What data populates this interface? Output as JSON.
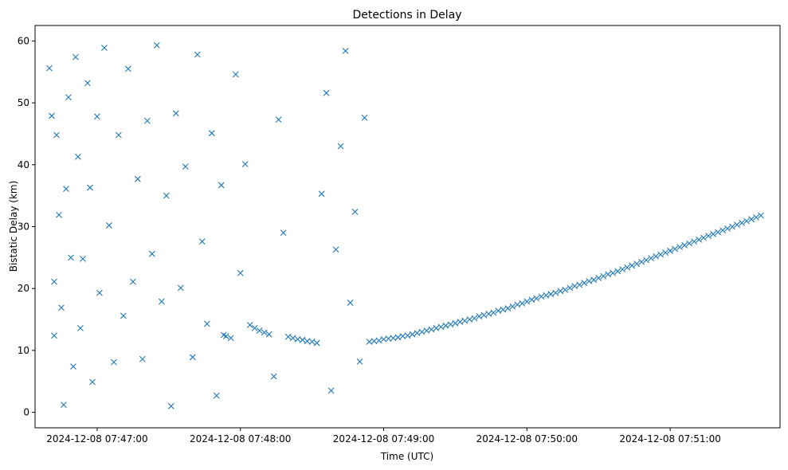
{
  "chart_data": {
    "type": "scatter",
    "title": "Detections in Delay",
    "xlabel": "Time (UTC)",
    "ylabel": "Bistatic Delay (km)",
    "x_type": "time",
    "xlim": [
      "2024-12-08 07:46:34",
      "2024-12-08 07:51:46"
    ],
    "ylim": [
      -2.5,
      62.5
    ],
    "x_ticks": [
      "2024-12-08 07:47:00",
      "2024-12-08 07:48:00",
      "2024-12-08 07:49:00",
      "2024-12-08 07:50:00",
      "2024-12-08 07:51:00"
    ],
    "y_ticks": [
      0,
      10,
      20,
      30,
      40,
      50,
      60
    ],
    "marker": "x",
    "color": "#1f77b4",
    "grid": false,
    "legend": "none",
    "series": [
      {
        "points": [
          [
            "2024-12-08 07:46:40",
            55.6
          ],
          [
            "2024-12-08 07:46:41",
            47.9
          ],
          [
            "2024-12-08 07:46:42",
            21.1
          ],
          [
            "2024-12-08 07:46:42",
            12.4
          ],
          [
            "2024-12-08 07:46:43",
            44.8
          ],
          [
            "2024-12-08 07:46:44",
            31.9
          ],
          [
            "2024-12-08 07:46:45",
            16.9
          ],
          [
            "2024-12-08 07:46:46",
            1.2
          ],
          [
            "2024-12-08 07:46:47",
            36.1
          ],
          [
            "2024-12-08 07:46:48",
            50.9
          ],
          [
            "2024-12-08 07:46:49",
            25.0
          ],
          [
            "2024-12-08 07:46:50",
            7.4
          ],
          [
            "2024-12-08 07:46:51",
            57.4
          ],
          [
            "2024-12-08 07:46:52",
            41.3
          ],
          [
            "2024-12-08 07:46:53",
            13.6
          ],
          [
            "2024-12-08 07:46:54",
            24.8
          ],
          [
            "2024-12-08 07:46:56",
            53.2
          ],
          [
            "2024-12-08 07:46:57",
            36.3
          ],
          [
            "2024-12-08 07:46:58",
            4.9
          ],
          [
            "2024-12-08 07:47:00",
            47.8
          ],
          [
            "2024-12-08 07:47:01",
            19.3
          ],
          [
            "2024-12-08 07:47:03",
            58.9
          ],
          [
            "2024-12-08 07:47:05",
            30.2
          ],
          [
            "2024-12-08 07:47:07",
            8.1
          ],
          [
            "2024-12-08 07:47:09",
            44.8
          ],
          [
            "2024-12-08 07:47:11",
            15.6
          ],
          [
            "2024-12-08 07:47:13",
            55.5
          ],
          [
            "2024-12-08 07:47:15",
            21.1
          ],
          [
            "2024-12-08 07:47:17",
            37.7
          ],
          [
            "2024-12-08 07:47:19",
            8.6
          ],
          [
            "2024-12-08 07:47:21",
            47.1
          ],
          [
            "2024-12-08 07:47:23",
            25.6
          ],
          [
            "2024-12-08 07:47:25",
            59.3
          ],
          [
            "2024-12-08 07:47:27",
            17.9
          ],
          [
            "2024-12-08 07:47:29",
            35.0
          ],
          [
            "2024-12-08 07:47:31",
            1.0
          ],
          [
            "2024-12-08 07:47:33",
            48.3
          ],
          [
            "2024-12-08 07:47:35",
            20.1
          ],
          [
            "2024-12-08 07:47:37",
            39.7
          ],
          [
            "2024-12-08 07:47:40",
            8.9
          ],
          [
            "2024-12-08 07:47:42",
            57.8
          ],
          [
            "2024-12-08 07:47:44",
            27.6
          ],
          [
            "2024-12-08 07:47:46",
            14.3
          ],
          [
            "2024-12-08 07:47:48",
            45.1
          ],
          [
            "2024-12-08 07:47:50",
            2.7
          ],
          [
            "2024-12-08 07:47:52",
            36.7
          ],
          [
            "2024-12-08 07:47:53",
            12.5
          ],
          [
            "2024-12-08 07:47:54",
            12.3
          ],
          [
            "2024-12-08 07:47:56",
            12.0
          ],
          [
            "2024-12-08 07:47:58",
            54.6
          ],
          [
            "2024-12-08 07:48:00",
            22.5
          ],
          [
            "2024-12-08 07:48:02",
            40.1
          ],
          [
            "2024-12-08 07:48:04",
            14.1
          ],
          [
            "2024-12-08 07:48:06",
            13.6
          ],
          [
            "2024-12-08 07:48:08",
            13.2
          ],
          [
            "2024-12-08 07:48:10",
            12.9
          ],
          [
            "2024-12-08 07:48:12",
            12.6
          ],
          [
            "2024-12-08 07:48:14",
            5.8
          ],
          [
            "2024-12-08 07:48:16",
            47.3
          ],
          [
            "2024-12-08 07:48:18",
            29.0
          ],
          [
            "2024-12-08 07:48:20",
            12.2
          ],
          [
            "2024-12-08 07:48:22",
            12.0
          ],
          [
            "2024-12-08 07:48:24",
            11.8
          ],
          [
            "2024-12-08 07:48:26",
            11.7
          ],
          [
            "2024-12-08 07:48:28",
            11.5
          ],
          [
            "2024-12-08 07:48:30",
            11.4
          ],
          [
            "2024-12-08 07:48:32",
            11.2
          ],
          [
            "2024-12-08 07:48:34",
            35.3
          ],
          [
            "2024-12-08 07:48:36",
            51.6
          ],
          [
            "2024-12-08 07:48:38",
            3.5
          ],
          [
            "2024-12-08 07:48:40",
            26.3
          ],
          [
            "2024-12-08 07:48:42",
            43.0
          ],
          [
            "2024-12-08 07:48:44",
            58.4
          ],
          [
            "2024-12-08 07:48:46",
            17.7
          ],
          [
            "2024-12-08 07:48:48",
            32.4
          ],
          [
            "2024-12-08 07:48:50",
            8.2
          ],
          [
            "2024-12-08 07:48:52",
            47.6
          ],
          [
            "2024-12-08 07:48:54",
            11.4
          ],
          [
            "2024-12-08 07:48:56",
            11.5
          ],
          [
            "2024-12-08 07:48:58",
            11.6
          ],
          [
            "2024-12-08 07:49:00",
            11.8
          ],
          [
            "2024-12-08 07:49:02",
            11.9
          ],
          [
            "2024-12-08 07:49:04",
            12.0
          ],
          [
            "2024-12-08 07:49:06",
            12.1
          ],
          [
            "2024-12-08 07:49:08",
            12.3
          ],
          [
            "2024-12-08 07:49:10",
            12.4
          ],
          [
            "2024-12-08 07:49:12",
            12.6
          ],
          [
            "2024-12-08 07:49:14",
            12.8
          ],
          [
            "2024-12-08 07:49:16",
            13.0
          ],
          [
            "2024-12-08 07:49:18",
            13.2
          ],
          [
            "2024-12-08 07:49:20",
            13.4
          ],
          [
            "2024-12-08 07:49:22",
            13.6
          ],
          [
            "2024-12-08 07:49:24",
            13.8
          ],
          [
            "2024-12-08 07:49:26",
            14.0
          ],
          [
            "2024-12-08 07:49:28",
            14.2
          ],
          [
            "2024-12-08 07:49:30",
            14.4
          ],
          [
            "2024-12-08 07:49:32",
            14.6
          ],
          [
            "2024-12-08 07:49:34",
            14.8
          ],
          [
            "2024-12-08 07:49:36",
            15.0
          ],
          [
            "2024-12-08 07:49:38",
            15.2
          ],
          [
            "2024-12-08 07:49:40",
            15.5
          ],
          [
            "2024-12-08 07:49:42",
            15.7
          ],
          [
            "2024-12-08 07:49:44",
            15.9
          ],
          [
            "2024-12-08 07:49:46",
            16.1
          ],
          [
            "2024-12-08 07:49:48",
            16.4
          ],
          [
            "2024-12-08 07:49:50",
            16.6
          ],
          [
            "2024-12-08 07:49:52",
            16.8
          ],
          [
            "2024-12-08 07:49:54",
            17.1
          ],
          [
            "2024-12-08 07:49:56",
            17.4
          ],
          [
            "2024-12-08 07:49:58",
            17.6
          ],
          [
            "2024-12-08 07:50:00",
            17.9
          ],
          [
            "2024-12-08 07:50:02",
            18.2
          ],
          [
            "2024-12-08 07:50:04",
            18.4
          ],
          [
            "2024-12-08 07:50:06",
            18.7
          ],
          [
            "2024-12-08 07:50:08",
            18.9
          ],
          [
            "2024-12-08 07:50:10",
            19.1
          ],
          [
            "2024-12-08 07:50:12",
            19.3
          ],
          [
            "2024-12-08 07:50:14",
            19.6
          ],
          [
            "2024-12-08 07:50:16",
            19.8
          ],
          [
            "2024-12-08 07:50:18",
            20.1
          ],
          [
            "2024-12-08 07:50:20",
            20.4
          ],
          [
            "2024-12-08 07:50:22",
            20.6
          ],
          [
            "2024-12-08 07:50:24",
            20.9
          ],
          [
            "2024-12-08 07:50:26",
            21.2
          ],
          [
            "2024-12-08 07:50:28",
            21.4
          ],
          [
            "2024-12-08 07:50:30",
            21.7
          ],
          [
            "2024-12-08 07:50:32",
            22.0
          ],
          [
            "2024-12-08 07:50:34",
            22.3
          ],
          [
            "2024-12-08 07:50:36",
            22.5
          ],
          [
            "2024-12-08 07:50:38",
            22.8
          ],
          [
            "2024-12-08 07:50:40",
            23.1
          ],
          [
            "2024-12-08 07:50:42",
            23.4
          ],
          [
            "2024-12-08 07:50:44",
            23.7
          ],
          [
            "2024-12-08 07:50:46",
            24.0
          ],
          [
            "2024-12-08 07:50:48",
            24.3
          ],
          [
            "2024-12-08 07:50:50",
            24.6
          ],
          [
            "2024-12-08 07:50:52",
            24.9
          ],
          [
            "2024-12-08 07:50:54",
            25.2
          ],
          [
            "2024-12-08 07:50:56",
            25.5
          ],
          [
            "2024-12-08 07:50:58",
            25.8
          ],
          [
            "2024-12-08 07:51:00",
            26.1
          ],
          [
            "2024-12-08 07:51:02",
            26.4
          ],
          [
            "2024-12-08 07:51:04",
            26.7
          ],
          [
            "2024-12-08 07:51:06",
            27.0
          ],
          [
            "2024-12-08 07:51:08",
            27.3
          ],
          [
            "2024-12-08 07:51:10",
            27.6
          ],
          [
            "2024-12-08 07:51:12",
            27.9
          ],
          [
            "2024-12-08 07:51:14",
            28.2
          ],
          [
            "2024-12-08 07:51:16",
            28.5
          ],
          [
            "2024-12-08 07:51:18",
            28.8
          ],
          [
            "2024-12-08 07:51:20",
            29.1
          ],
          [
            "2024-12-08 07:51:22",
            29.4
          ],
          [
            "2024-12-08 07:51:24",
            29.7
          ],
          [
            "2024-12-08 07:51:26",
            30.0
          ],
          [
            "2024-12-08 07:51:28",
            30.3
          ],
          [
            "2024-12-08 07:51:30",
            30.6
          ],
          [
            "2024-12-08 07:51:32",
            30.9
          ],
          [
            "2024-12-08 07:51:34",
            31.2
          ],
          [
            "2024-12-08 07:51:36",
            31.5
          ],
          [
            "2024-12-08 07:51:38",
            31.8
          ]
        ]
      }
    ]
  }
}
